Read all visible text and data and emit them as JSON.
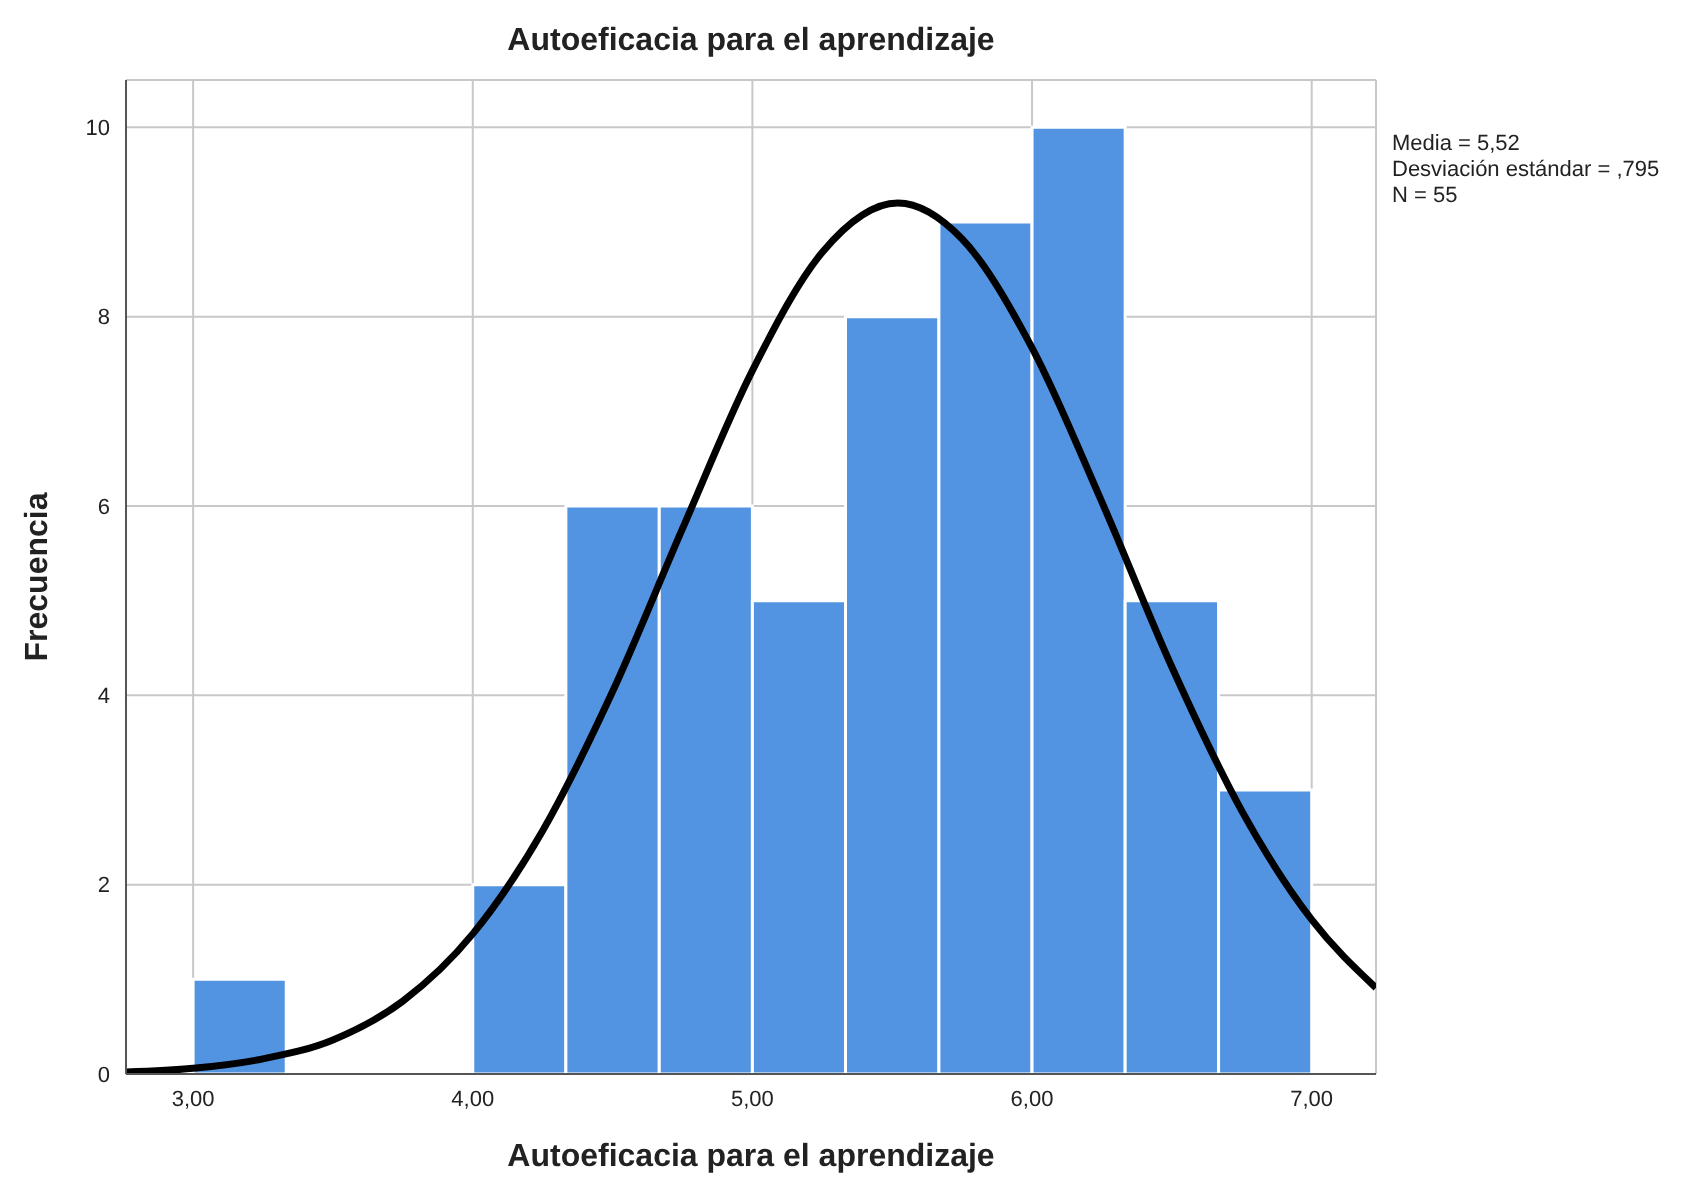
{
  "chart_data": {
    "type": "histogram",
    "title": "Autoeficacia para el aprendizaje",
    "xlabel": "Autoeficacia para el aprendizaje",
    "ylabel": "Frecuencia",
    "bins": [
      3.0,
      3.333,
      3.667,
      4.0,
      4.333,
      4.667,
      5.0,
      5.333,
      5.667,
      6.0,
      6.333,
      6.667,
      7.0
    ],
    "values": [
      1,
      0,
      0,
      2,
      6,
      6,
      5,
      8,
      9,
      10,
      5,
      3
    ],
    "color": "#5294e2",
    "series": [
      {
        "type": "line",
        "color": "#000000",
        "x": [
          2.76,
          3.0,
          3.25,
          3.5,
          3.75,
          4.0,
          4.25,
          4.5,
          4.75,
          5.0,
          5.25,
          5.52,
          5.75,
          6.0,
          6.25,
          6.5,
          6.75,
          7.0,
          7.23
        ],
        "values": [
          0.02,
          0.06,
          0.16,
          0.36,
          0.77,
          1.48,
          2.57,
          4.04,
          5.76,
          7.43,
          8.68,
          9.2,
          8.82,
          7.67,
          6.04,
          4.3,
          2.78,
          1.63,
          0.91
        ]
      }
    ],
    "xlim": [
      2.76,
      7.23
    ],
    "ylim": [
      0,
      10.5
    ],
    "xticks": [
      {
        "value": 3,
        "label": "3,00"
      },
      {
        "value": 4,
        "label": "4,00"
      },
      {
        "value": 5,
        "label": "5,00"
      },
      {
        "value": 6,
        "label": "6,00"
      },
      {
        "value": 7,
        "label": "7,00"
      }
    ],
    "yticks": [
      0,
      2,
      4,
      6,
      8,
      10
    ],
    "grid": true,
    "annotations": [
      "Media = 5,52",
      "Desviación estándar = ,795",
      "N = 55"
    ]
  }
}
